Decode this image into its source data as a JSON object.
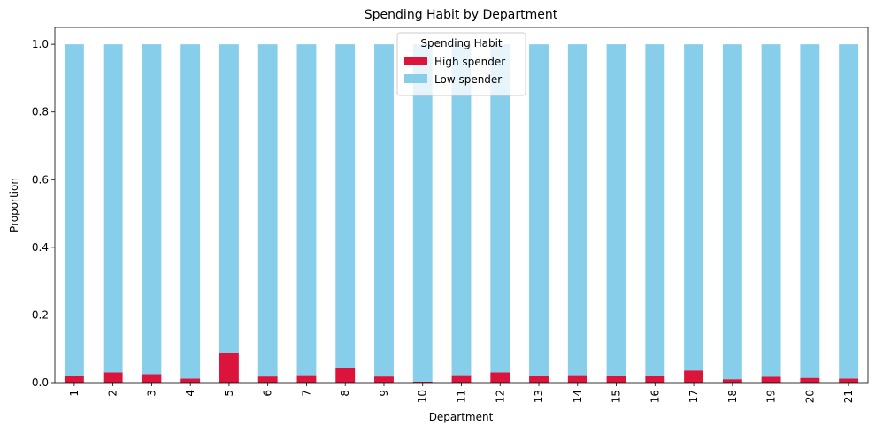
{
  "chart_data": {
    "type": "bar",
    "stacked": true,
    "title": "Spending Habit by Department",
    "xlabel": "Department",
    "ylabel": "Proportion",
    "ylim": [
      0,
      1.05
    ],
    "yticks": [
      "0.0",
      "0.2",
      "0.4",
      "0.6",
      "0.8",
      "1.0"
    ],
    "categories": [
      "1",
      "2",
      "3",
      "4",
      "5",
      "6",
      "7",
      "8",
      "9",
      "10",
      "11",
      "12",
      "13",
      "14",
      "15",
      "16",
      "17",
      "18",
      "19",
      "20",
      "21"
    ],
    "legend": {
      "title": "Spending Habit",
      "placement": "top-center"
    },
    "series": [
      {
        "name": "High spender",
        "color": "#dc143c",
        "values": [
          0.02,
          0.03,
          0.025,
          0.012,
          0.088,
          0.018,
          0.022,
          0.042,
          0.018,
          0.003,
          0.022,
          0.03,
          0.02,
          0.022,
          0.02,
          0.02,
          0.036,
          0.01,
          0.017,
          0.014,
          0.012
        ]
      },
      {
        "name": "Low spender",
        "color": "#87ceeb",
        "values": [
          0.98,
          0.97,
          0.975,
          0.988,
          0.912,
          0.982,
          0.978,
          0.958,
          0.982,
          0.997,
          0.978,
          0.97,
          0.98,
          0.978,
          0.98,
          0.98,
          0.964,
          0.99,
          0.983,
          0.986,
          0.988
        ]
      }
    ]
  }
}
